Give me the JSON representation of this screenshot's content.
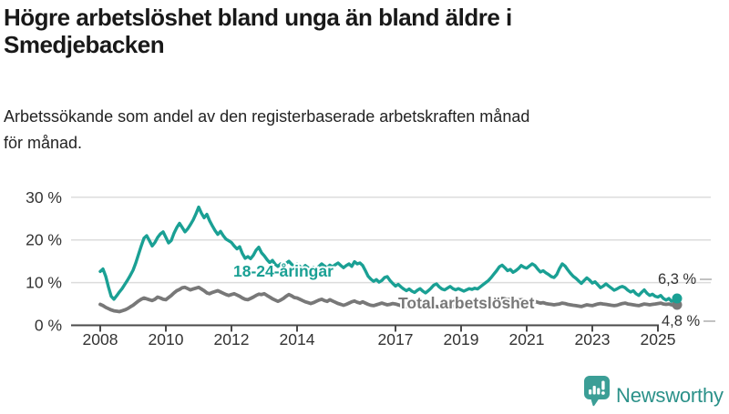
{
  "header": {
    "title_lines": [
      "Högre arbetslöshet bland unga än bland äldre i",
      "Smedjebacken"
    ],
    "subtitle_lines": [
      "Arbetssökande som andel av den registerbaserade arbetskraften månad",
      "för månad."
    ]
  },
  "footer": {
    "brand": "Newsworthy"
  },
  "colors": {
    "youth_line": "#1aa094",
    "total_line": "#787878",
    "grid": "#dcdcdc",
    "axis": "#4a4a4a",
    "tick_text": "#333333",
    "end_label_text": "#333333",
    "leader_dash": "#b3b3b3",
    "logo_icon": "#3b9e96",
    "logo_text": "#2b9189"
  },
  "chart_data": {
    "type": "line",
    "title": "Högre arbetslöshet bland unga än bland äldre i Smedjebacken",
    "subtitle": "Arbetssökande som andel av den registerbaserade arbetskraften månad för månad.",
    "frequency": "monthly",
    "x_start": "2008-01",
    "x_end": "2025-08",
    "ylim": [
      0,
      30
    ],
    "grid": true,
    "y_ticks": [
      {
        "value": 0,
        "label": "0 %"
      },
      {
        "value": 10,
        "label": "10 %"
      },
      {
        "value": 20,
        "label": "20 %"
      },
      {
        "value": 30,
        "label": "30 %"
      }
    ],
    "x_ticks": [
      {
        "year": 2008,
        "label": "2008"
      },
      {
        "year": 2010,
        "label": "2010"
      },
      {
        "year": 2012,
        "label": "2012"
      },
      {
        "year": 2014,
        "label": "2014"
      },
      {
        "year": 2017,
        "label": "2017"
      },
      {
        "year": 2019,
        "label": "2019"
      },
      {
        "year": 2021,
        "label": "2021"
      },
      {
        "year": 2023,
        "label": "2023"
      },
      {
        "year": 2025,
        "label": "2025"
      }
    ],
    "series": [
      {
        "name": "18-24-åringar",
        "color": "#1aa094",
        "end_label": "6,3 %",
        "end_value": 6.3,
        "values": [
          12.6,
          13.2,
          11.5,
          9.0,
          6.8,
          6.1,
          6.9,
          7.8,
          8.6,
          9.6,
          10.6,
          11.7,
          12.9,
          14.6,
          16.6,
          18.6,
          20.4,
          21.0,
          19.8,
          18.6,
          19.4,
          20.6,
          21.4,
          21.9,
          20.6,
          19.3,
          19.9,
          21.6,
          22.9,
          23.9,
          22.9,
          21.9,
          22.6,
          23.6,
          24.7,
          26.1,
          27.7,
          26.3,
          25.2,
          26.0,
          24.5,
          23.3,
          22.2,
          21.3,
          22.0,
          21.0,
          20.2,
          19.8,
          19.4,
          18.6,
          17.9,
          18.4,
          16.8,
          15.7,
          16.1,
          15.6,
          16.4,
          17.6,
          18.3,
          17.0,
          16.3,
          15.4,
          14.7,
          15.2,
          14.3,
          13.8,
          14.4,
          13.9,
          14.5,
          15.0,
          14.3,
          13.8,
          14.3,
          13.8,
          13.4,
          14.0,
          13.5,
          13.0,
          13.6,
          13.2,
          13.8,
          14.4,
          13.9,
          13.5,
          14.1,
          13.7,
          14.2,
          14.6,
          14.0,
          13.5,
          14.0,
          14.4,
          13.8,
          14.9,
          14.4,
          14.6,
          14.0,
          12.8,
          11.5,
          10.8,
          10.3,
          10.7,
          10.1,
          10.5,
          11.2,
          11.4,
          10.5,
          9.8,
          9.2,
          9.6,
          9.0,
          8.5,
          8.1,
          8.5,
          8.0,
          7.7,
          8.2,
          8.6,
          8.0,
          7.6,
          8.1,
          8.7,
          9.4,
          9.7,
          9.0,
          8.5,
          8.3,
          8.7,
          9.1,
          8.6,
          8.3,
          8.6,
          8.3,
          8.0,
          8.3,
          8.6,
          8.4,
          8.7,
          8.5,
          9.0,
          9.5,
          10.0,
          10.5,
          11.2,
          12.0,
          12.8,
          13.7,
          14.1,
          13.5,
          12.8,
          13.1,
          12.4,
          12.8,
          13.3,
          14.0,
          13.6,
          13.4,
          13.9,
          14.4,
          14.0,
          13.2,
          12.5,
          12.8,
          12.3,
          11.9,
          11.4,
          11.2,
          11.9,
          13.3,
          14.4,
          13.9,
          13.0,
          12.2,
          11.5,
          11.0,
          10.4,
          9.8,
          10.5,
          11.1,
          10.6,
          9.9,
          10.2,
          9.5,
          8.8,
          9.2,
          9.7,
          9.2,
          8.7,
          8.2,
          8.5,
          8.9,
          9.1,
          8.8,
          8.2,
          7.8,
          8.1,
          7.4,
          7.0,
          7.7,
          8.3,
          7.5,
          7.0,
          7.3,
          6.8,
          6.6,
          7.0,
          6.3,
          5.9,
          6.3,
          5.6,
          5.9,
          6.3
        ]
      },
      {
        "name": "Total arbetslöshet",
        "color": "#787878",
        "end_label": "4,8 %",
        "end_value": 4.8,
        "values": [
          4.9,
          4.6,
          4.2,
          3.9,
          3.6,
          3.4,
          3.3,
          3.2,
          3.4,
          3.6,
          3.9,
          4.3,
          4.7,
          5.2,
          5.7,
          6.1,
          6.4,
          6.2,
          6.0,
          5.8,
          6.1,
          6.6,
          6.4,
          6.1,
          6.0,
          6.5,
          7.0,
          7.6,
          8.1,
          8.4,
          8.8,
          8.9,
          8.6,
          8.3,
          8.5,
          8.7,
          8.9,
          8.5,
          8.1,
          7.6,
          7.4,
          7.7,
          7.9,
          8.1,
          7.8,
          7.5,
          7.2,
          7.0,
          7.2,
          7.4,
          7.1,
          6.8,
          6.4,
          6.1,
          6.0,
          6.3,
          6.6,
          7.0,
          7.3,
          7.2,
          7.4,
          7.0,
          6.6,
          6.2,
          5.9,
          5.6,
          5.9,
          6.3,
          6.8,
          7.2,
          6.9,
          6.5,
          6.4,
          6.1,
          5.8,
          5.5,
          5.3,
          5.1,
          5.3,
          5.6,
          5.9,
          6.1,
          5.8,
          5.6,
          6.0,
          5.7,
          5.4,
          5.1,
          4.9,
          4.7,
          4.9,
          5.2,
          5.5,
          5.7,
          5.4,
          5.2,
          5.5,
          5.2,
          4.9,
          4.7,
          4.6,
          4.8,
          5.0,
          5.2,
          5.0,
          4.8,
          4.9,
          5.1,
          5.0,
          4.8,
          4.6,
          4.5,
          4.4,
          4.6,
          4.8,
          5.0,
          4.8,
          4.6,
          4.5,
          4.7,
          4.9,
          4.7,
          4.5,
          4.4,
          4.3,
          4.5,
          4.7,
          4.9,
          4.7,
          4.5,
          4.4,
          4.6,
          4.7,
          4.5,
          4.4,
          4.5,
          4.6,
          4.8,
          4.9,
          5.0,
          5.1,
          5.2,
          5.4,
          5.6,
          5.8,
          6.0,
          6.2,
          6.3,
          6.2,
          6.0,
          6.1,
          5.9,
          5.8,
          5.9,
          6.0,
          5.9,
          5.8,
          5.9,
          5.8,
          5.6,
          5.4,
          5.2,
          5.3,
          5.1,
          5.0,
          4.9,
          4.8,
          4.9,
          5.0,
          5.2,
          5.1,
          4.9,
          4.8,
          4.7,
          4.6,
          4.5,
          4.4,
          4.6,
          4.8,
          4.7,
          4.6,
          4.8,
          5.0,
          5.1,
          5.0,
          4.9,
          4.8,
          4.7,
          4.6,
          4.7,
          4.9,
          5.1,
          5.2,
          5.0,
          4.9,
          4.8,
          4.7,
          4.6,
          4.8,
          5.0,
          4.9,
          4.8,
          4.9,
          5.0,
          5.1,
          5.2,
          5.0,
          4.9,
          5.0,
          4.8,
          4.7,
          4.8
        ]
      }
    ],
    "legend_position": "inline-labels"
  }
}
